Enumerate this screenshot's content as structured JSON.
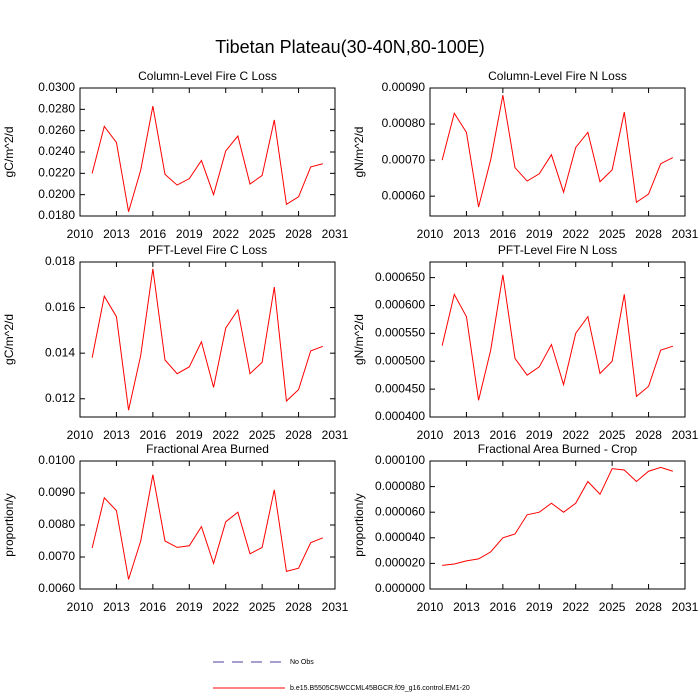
{
  "title": "Tibetan Plateau(30-40N,80-100E)",
  "legend": [
    {
      "name": "No Obs",
      "color": "#4b3c9c",
      "dashed": true
    },
    {
      "name": "b.e15.B5505C5WCCML45BGCR.f09_g16.control.EM1-20",
      "color": "#ff0000",
      "dashed": false
    }
  ],
  "chart_data": [
    {
      "type": "line",
      "title": "Column-Level Fire C Loss",
      "y_label": "gC/m^2/d",
      "x": [
        2011,
        2012,
        2013,
        2014,
        2015,
        2016,
        2017,
        2018,
        2019,
        2020,
        2021,
        2022,
        2023,
        2024,
        2025,
        2026,
        2027,
        2028,
        2029,
        2030
      ],
      "values": [
        0.022,
        0.0264,
        0.0249,
        0.0184,
        0.0223,
        0.0283,
        0.0219,
        0.0209,
        0.0215,
        0.0232,
        0.02,
        0.0241,
        0.0255,
        0.021,
        0.0218,
        0.027,
        0.0191,
        0.0198,
        0.0226,
        0.0229
      ],
      "color": "#ff0000",
      "xlim": [
        2010,
        2031
      ],
      "xticks": [
        2010,
        2013,
        2016,
        2019,
        2022,
        2025,
        2028,
        2031
      ],
      "ylim": [
        0.018,
        0.03
      ],
      "yticks": [
        {
          "value": 0.018,
          "label": "0.0180"
        },
        {
          "value": 0.02,
          "label": "0.0200"
        },
        {
          "value": 0.022,
          "label": "0.0220"
        },
        {
          "value": 0.024,
          "label": "0.0240"
        },
        {
          "value": 0.026,
          "label": "0.0260"
        },
        {
          "value": 0.028,
          "label": "0.0280"
        },
        {
          "value": 0.03,
          "label": "0.0300"
        }
      ]
    },
    {
      "type": "line",
      "title": "Column-Level Fire N Loss",
      "y_label": "gN/m^2/d",
      "x": [
        2011,
        2012,
        2013,
        2014,
        2015,
        2016,
        2017,
        2018,
        2019,
        2020,
        2021,
        2022,
        2023,
        2024,
        2025,
        2026,
        2027,
        2028,
        2029,
        2030
      ],
      "values": [
        0.0007,
        0.00083,
        0.000777,
        0.00057,
        0.000701,
        0.00088,
        0.000679,
        0.000642,
        0.000662,
        0.000715,
        0.000611,
        0.000735,
        0.000777,
        0.00064,
        0.000673,
        0.000833,
        0.000583,
        0.000606,
        0.00069,
        0.000707
      ],
      "color": "#ff0000",
      "xlim": [
        2010,
        2031
      ],
      "xticks": [
        2010,
        2013,
        2016,
        2019,
        2022,
        2025,
        2028,
        2031
      ],
      "ylim": [
        0.000545,
        0.0009
      ],
      "yticks": [
        {
          "value": 0.0006,
          "label": "0.00060"
        },
        {
          "value": 0.0007,
          "label": "0.00070"
        },
        {
          "value": 0.0008,
          "label": "0.00080"
        },
        {
          "value": 0.0009,
          "label": "0.00090"
        }
      ]
    },
    {
      "type": "line",
      "title": "PFT-Level Fire C Loss",
      "y_label": "gC/m^2/d",
      "x": [
        2011,
        2012,
        2013,
        2014,
        2015,
        2016,
        2017,
        2018,
        2019,
        2020,
        2021,
        2022,
        2023,
        2024,
        2025,
        2026,
        2027,
        2028,
        2029,
        2030
      ],
      "values": [
        0.0138,
        0.0165,
        0.0156,
        0.0115,
        0.0139,
        0.0177,
        0.0137,
        0.0131,
        0.0134,
        0.0145,
        0.0125,
        0.0151,
        0.0159,
        0.0131,
        0.0136,
        0.0169,
        0.0119,
        0.0124,
        0.0141,
        0.0143
      ],
      "color": "#ff0000",
      "xlim": [
        2010,
        2031
      ],
      "xticks": [
        2010,
        2013,
        2016,
        2019,
        2022,
        2025,
        2028,
        2031
      ],
      "ylim": [
        0.0112,
        0.018
      ],
      "yticks": [
        0.012,
        0.014,
        0.016,
        0.018
      ]
    },
    {
      "type": "line",
      "title": "PFT-Level Fire N Loss",
      "y_label": "gN/m^2/d",
      "x": [
        2011,
        2012,
        2013,
        2014,
        2015,
        2016,
        2017,
        2018,
        2019,
        2020,
        2021,
        2022,
        2023,
        2024,
        2025,
        2026,
        2027,
        2028,
        2029,
        2030
      ],
      "values": [
        0.000528,
        0.00062,
        0.00058,
        0.00043,
        0.00052,
        0.000655,
        0.000505,
        0.000475,
        0.00049,
        0.00053,
        0.000458,
        0.00055,
        0.00058,
        0.000478,
        0.0005,
        0.00062,
        0.000437,
        0.000455,
        0.00052,
        0.000527
      ],
      "color": "#ff0000",
      "xlim": [
        2010,
        2031
      ],
      "xticks": [
        2010,
        2013,
        2016,
        2019,
        2022,
        2025,
        2028,
        2031
      ],
      "ylim": [
        0.0004,
        0.000678
      ],
      "yticks": [
        {
          "value": 0.0004,
          "label": "0.000400"
        },
        {
          "value": 0.00045,
          "label": "0.000450"
        },
        {
          "value": 0.0005,
          "label": "0.000500"
        },
        {
          "value": 0.00055,
          "label": "0.000550"
        },
        {
          "value": 0.0006,
          "label": "0.000600"
        },
        {
          "value": 0.00065,
          "label": "0.000650"
        }
      ]
    },
    {
      "type": "line",
      "title": "Fractional Area Burned",
      "y_label": "proportion/y",
      "x": [
        2011,
        2012,
        2013,
        2014,
        2015,
        2016,
        2017,
        2018,
        2019,
        2020,
        2021,
        2022,
        2023,
        2024,
        2025,
        2026,
        2027,
        2028,
        2029,
        2030
      ],
      "values": [
        0.00728,
        0.00885,
        0.00845,
        0.0063,
        0.0075,
        0.00957,
        0.0075,
        0.0073,
        0.00735,
        0.00795,
        0.0068,
        0.0081,
        0.0084,
        0.0071,
        0.0073,
        0.0091,
        0.00655,
        0.00665,
        0.00745,
        0.0076
      ],
      "color": "#ff0000",
      "xlim": [
        2010,
        2031
      ],
      "xticks": [
        2010,
        2013,
        2016,
        2019,
        2022,
        2025,
        2028,
        2031
      ],
      "ylim": [
        0.006,
        0.01
      ],
      "yticks": [
        {
          "value": 0.006,
          "label": "0.0060"
        },
        {
          "value": 0.007,
          "label": "0.0070"
        },
        {
          "value": 0.008,
          "label": "0.0080"
        },
        {
          "value": 0.009,
          "label": "0.0090"
        },
        {
          "value": 0.01,
          "label": "0.0100"
        }
      ]
    },
    {
      "type": "line",
      "title": "Fractional Area Burned - Crop",
      "y_label": "proportion/y",
      "x": [
        2011,
        2012,
        2013,
        2014,
        2015,
        2016,
        2017,
        2018,
        2019,
        2020,
        2021,
        2022,
        2023,
        2024,
        2025,
        2026,
        2027,
        2028,
        2029,
        2030
      ],
      "values": [
        1.85e-05,
        1.95e-05,
        2.2e-05,
        2.35e-05,
        2.9e-05,
        4e-05,
        4.3e-05,
        5.8e-05,
        6e-05,
        6.7e-05,
        6e-05,
        6.7e-05,
        8.4e-05,
        7.4e-05,
        9.4e-05,
        9.3e-05,
        8.4e-05,
        9.2e-05,
        9.5e-05,
        9.2e-05
      ],
      "color": "#ff0000",
      "xlim": [
        2010,
        2031
      ],
      "xticks": [
        2010,
        2013,
        2016,
        2019,
        2022,
        2025,
        2028,
        2031
      ],
      "ylim": [
        0,
        0.0001
      ],
      "yticks": [
        {
          "value": 0,
          "label": "0.000000"
        },
        {
          "value": 2e-05,
          "label": "0.000020"
        },
        {
          "value": 4e-05,
          "label": "0.000040"
        },
        {
          "value": 6e-05,
          "label": "0.000060"
        },
        {
          "value": 8e-05,
          "label": "0.000080"
        },
        {
          "value": 0.0001,
          "label": "0.000100"
        }
      ]
    }
  ]
}
